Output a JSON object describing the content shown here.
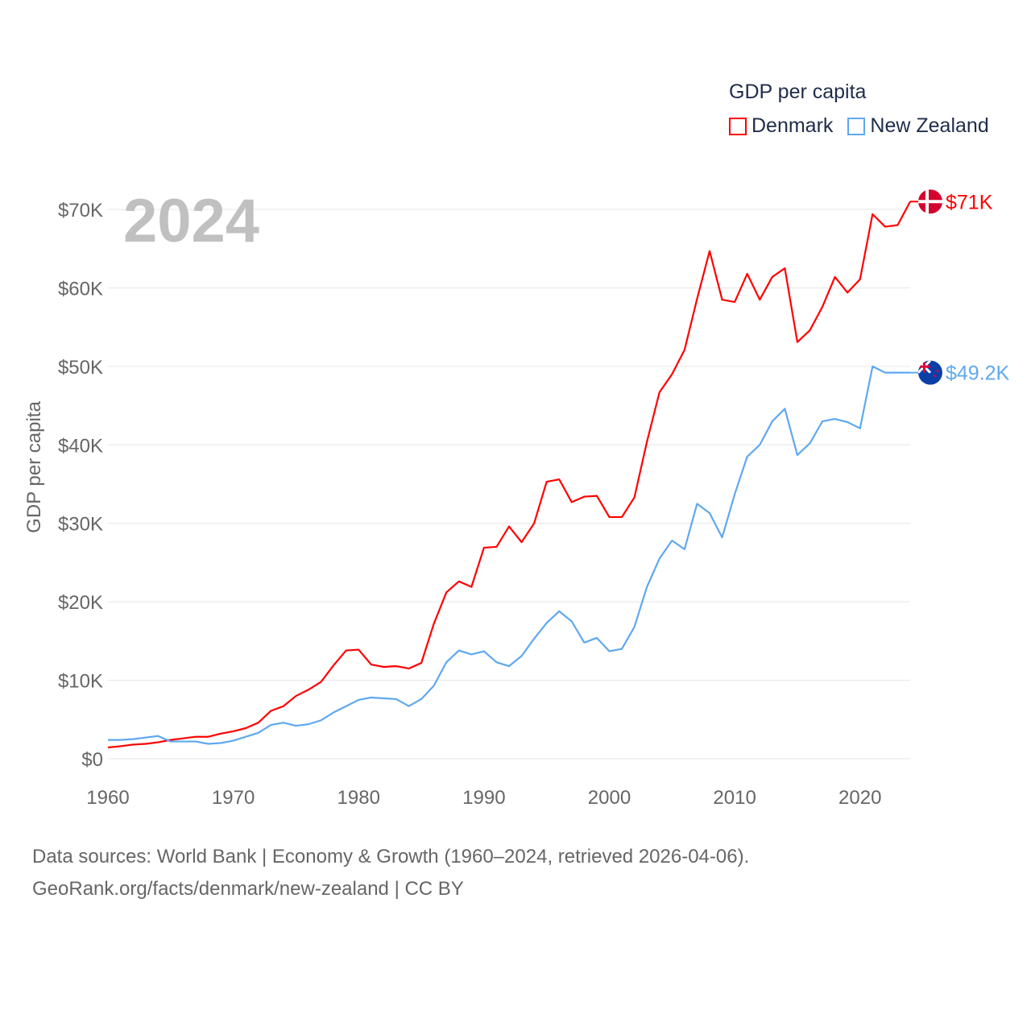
{
  "chart_data": {
    "type": "line",
    "title": "GDP per capita",
    "xlabel": "",
    "ylabel": "GDP per capita",
    "year_label": "2024",
    "xlim": [
      1960,
      2024
    ],
    "ylim": [
      0,
      70000
    ],
    "x_ticks": [
      1960,
      1970,
      1980,
      1990,
      2000,
      2010,
      2020
    ],
    "y_ticks": [
      0,
      10000,
      20000,
      30000,
      40000,
      50000,
      60000,
      70000
    ],
    "y_tick_labels": [
      "$0",
      "$10K",
      "$20K",
      "$30K",
      "$40K",
      "$50K",
      "$60K",
      "$70K"
    ],
    "grid": true,
    "legend_position": "top-right",
    "start_year": 1960,
    "series": [
      {
        "name": "Denmark",
        "color": "#ff0000",
        "end_label": "$71K",
        "values": [
          1440,
          1600,
          1800,
          1900,
          2100,
          2400,
          2600,
          2800,
          2800,
          3200,
          3500,
          3900,
          4600,
          6100,
          6700,
          8000,
          8800,
          9800,
          11900,
          13800,
          13900,
          12000,
          11700,
          11800,
          11500,
          12200,
          17200,
          21200,
          22600,
          21900,
          26900,
          27000,
          29600,
          27600,
          30000,
          35300,
          35600,
          32700,
          33400,
          33500,
          30800,
          30800,
          33300,
          40400,
          46700,
          49000,
          52100,
          58600,
          64700,
          58500,
          58200,
          61800,
          58500,
          61400,
          62500,
          53100,
          54600,
          57600,
          61400,
          59400,
          61100,
          69400,
          67800,
          68000,
          71000
        ]
      },
      {
        "name": "New Zealand",
        "color": "#5fa8f0",
        "end_label": "$49.2K",
        "values": [
          2400,
          2400,
          2500,
          2700,
          2900,
          2200,
          2200,
          2200,
          1900,
          2000,
          2300,
          2800,
          3300,
          4300,
          4600,
          4200,
          4400,
          4900,
          5900,
          6700,
          7500,
          7800,
          7700,
          7600,
          6700,
          7600,
          9300,
          12300,
          13800,
          13300,
          13700,
          12300,
          11800,
          13100,
          15300,
          17300,
          18800,
          17500,
          14800,
          15400,
          13700,
          14000,
          16800,
          21900,
          25500,
          27800,
          26700,
          32500,
          31300,
          28200,
          33700,
          38500,
          40000,
          43000,
          44600,
          38700,
          40200,
          43000,
          43300,
          42900,
          42100,
          50000,
          49200,
          49200,
          49200
        ]
      }
    ]
  },
  "footer": {
    "line1": "Data sources: World Bank | Economy & Growth (1960–2024, retrieved 2026-04-06).",
    "line2": "GeoRank.org/facts/denmark/new-zealand | CC BY"
  }
}
